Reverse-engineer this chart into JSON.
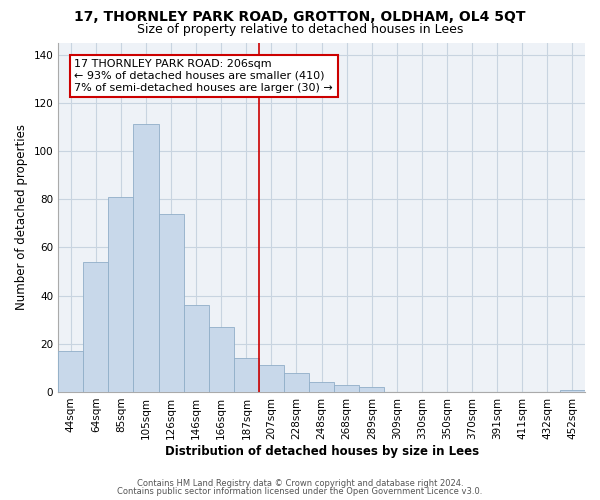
{
  "title": "17, THORNLEY PARK ROAD, GROTTON, OLDHAM, OL4 5QT",
  "subtitle": "Size of property relative to detached houses in Lees",
  "xlabel": "Distribution of detached houses by size in Lees",
  "ylabel": "Number of detached properties",
  "bin_labels": [
    "44sqm",
    "64sqm",
    "85sqm",
    "105sqm",
    "126sqm",
    "146sqm",
    "166sqm",
    "187sqm",
    "207sqm",
    "228sqm",
    "248sqm",
    "268sqm",
    "289sqm",
    "309sqm",
    "330sqm",
    "350sqm",
    "370sqm",
    "391sqm",
    "411sqm",
    "432sqm",
    "452sqm"
  ],
  "bar_heights": [
    17,
    54,
    81,
    111,
    74,
    36,
    27,
    14,
    11,
    8,
    4,
    3,
    2,
    0,
    0,
    0,
    0,
    0,
    0,
    0,
    1
  ],
  "bar_color": "#c8d8ea",
  "bar_edge_color": "#90aec8",
  "vline_x_index": 8,
  "vline_color": "#cc0000",
  "annotation_title": "17 THORNLEY PARK ROAD: 206sqm",
  "annotation_line1": "← 93% of detached houses are smaller (410)",
  "annotation_line2": "7% of semi-detached houses are larger (30) →",
  "annotation_box_facecolor": "#ffffff",
  "annotation_box_edgecolor": "#cc0000",
  "ylim": [
    0,
    145
  ],
  "yticks": [
    0,
    20,
    40,
    60,
    80,
    100,
    120,
    140
  ],
  "footer1": "Contains HM Land Registry data © Crown copyright and database right 2024.",
  "footer2": "Contains public sector information licensed under the Open Government Licence v3.0.",
  "plot_bg_color": "#eef2f7",
  "fig_bg_color": "#ffffff",
  "grid_color": "#c8d4e0",
  "title_fontsize": 10,
  "subtitle_fontsize": 9,
  "axis_label_fontsize": 8.5,
  "tick_fontsize": 7.5,
  "annotation_fontsize": 8,
  "footer_fontsize": 6
}
